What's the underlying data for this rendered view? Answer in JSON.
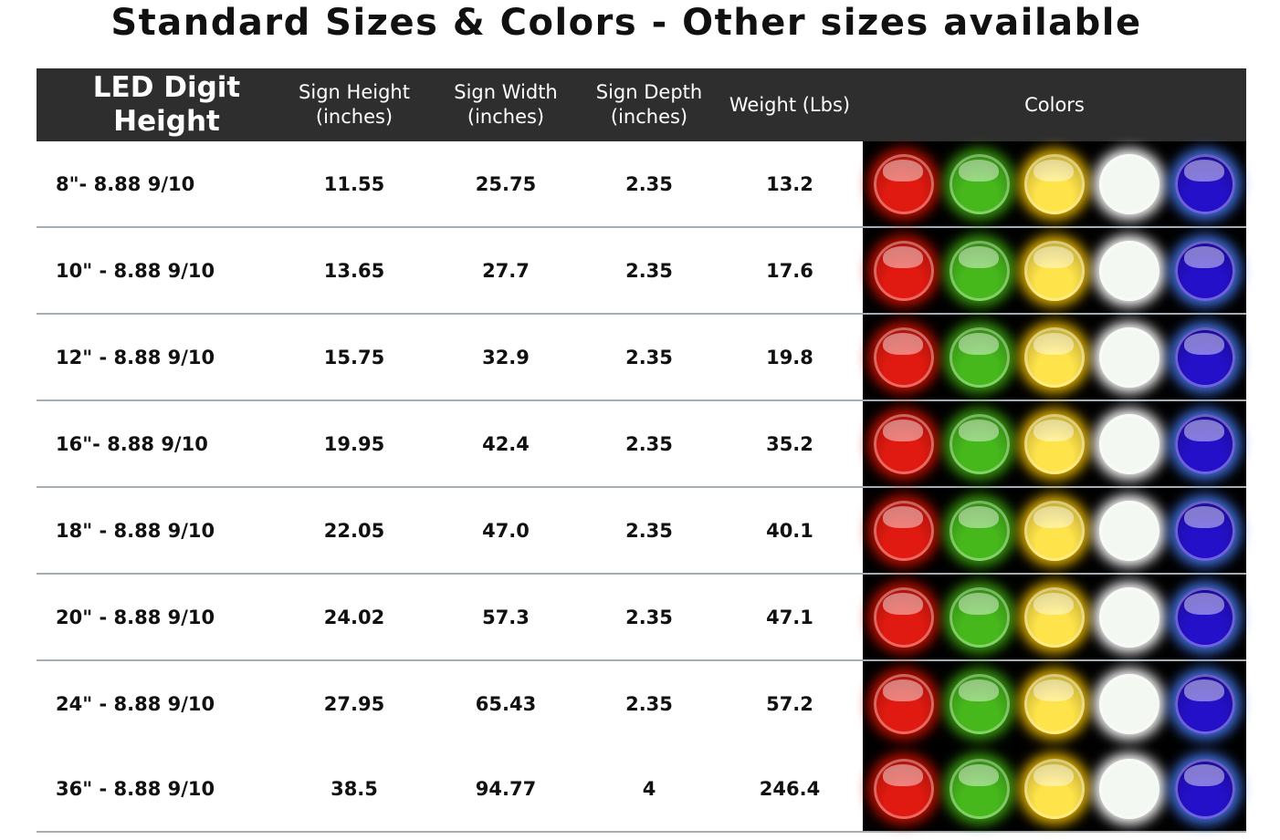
{
  "title": "Standard Sizes & Colors - Other sizes available",
  "table": {
    "headers": [
      "LED Digit Height",
      "Sign Height (inches)",
      "Sign Width (inches)",
      "Sign Depth (inches)",
      "Weight (Lbs)",
      "Colors"
    ],
    "rows": [
      [
        "8\"- 8.88 9/10",
        "11.55",
        "25.75",
        "2.35",
        "13.2"
      ],
      [
        "10\" - 8.88 9/10",
        "13.65",
        "27.7",
        "2.35",
        "17.6"
      ],
      [
        "12\" - 8.88 9/10",
        "15.75",
        "32.9",
        "2.35",
        "19.8"
      ],
      [
        "16\"- 8.88 9/10",
        "19.95",
        "42.4",
        "2.35",
        "35.2"
      ],
      [
        "18\" - 8.88 9/10",
        "22.05",
        "47.0",
        "2.35",
        "40.1"
      ],
      [
        "20\" - 8.88 9/10",
        "24.02",
        "57.3",
        "2.35",
        "47.1"
      ],
      [
        "24\" - 8.88 9/10",
        "27.95",
        "65.43",
        "2.35",
        "57.2"
      ],
      [
        "36\" - 8.88 9/10",
        "38.5",
        "94.77",
        "4",
        "246.4"
      ]
    ]
  },
  "led_colors": [
    {
      "name": "red",
      "color": "#e01a10",
      "glow": "#c01000"
    },
    {
      "name": "green",
      "color": "#46b81c",
      "glow": "#3a9a10"
    },
    {
      "name": "yellow",
      "color": "#ffe34a",
      "glow": "#e0b000"
    },
    {
      "name": "white",
      "color": "#f4f8f2",
      "glow": "#ffffff"
    },
    {
      "name": "blue",
      "color": "#2410c8",
      "glow": "#4070e0"
    }
  ]
}
